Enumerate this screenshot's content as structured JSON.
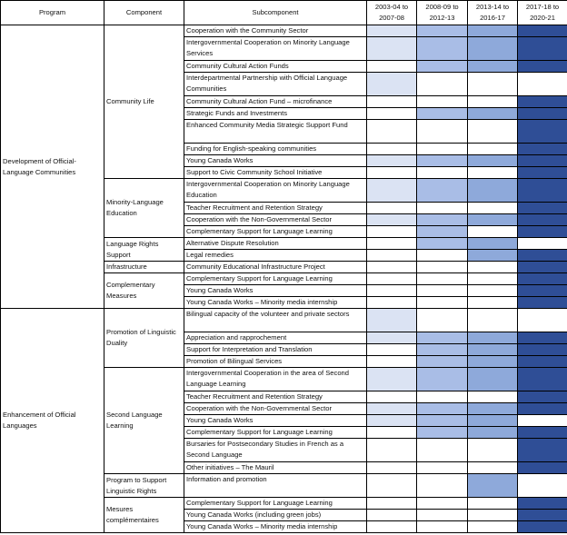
{
  "headers": {
    "program": "Program",
    "component": "Component",
    "subcomponent": "Subcomponent",
    "p1": "2003-04 to 2007-08",
    "p2": "2008-09 to 2012-13",
    "p3": "2013-14 to 2016-17",
    "p4": "2017-18 to 2020-21"
  },
  "shade_colors": {
    "1": "#dbe3f3",
    "2": "#a9bde6",
    "3": "#8ea9da",
    "4": "#2f4e96"
  },
  "programs": [
    {
      "name": "Development of Official-Language Communities",
      "components": [
        {
          "name": "Community Life",
          "rows": [
            {
              "sub": "Cooperation with the Community Sector",
              "shades": [
                1,
                2,
                3,
                4
              ]
            },
            {
              "sub": "Intergovernmental Cooperation on Minority Language Services",
              "shades": [
                1,
                2,
                3,
                4
              ]
            },
            {
              "sub": "Community Cultural Action Funds",
              "shades": [
                0,
                2,
                3,
                4
              ]
            },
            {
              "sub": "Interdepartmental Partnership with Official Language Communities",
              "shades": [
                1,
                0,
                0,
                0
              ]
            },
            {
              "sub": "Community Cultural Action Fund – microfinance",
              "shades": [
                0,
                0,
                0,
                4
              ]
            },
            {
              "sub": "Strategic Funds and Investments",
              "shades": [
                0,
                2,
                3,
                4
              ]
            },
            {
              "sub": "Enhanced Community Media Strategic Support Fund",
              "shades": [
                0,
                0,
                0,
                4
              ]
            },
            {
              "sub": "Funding for English-speaking communities",
              "shades": [
                0,
                0,
                0,
                4
              ]
            },
            {
              "sub": "Young Canada Works",
              "shades": [
                1,
                2,
                3,
                4
              ]
            },
            {
              "sub": "Support to Civic Community School Initiative",
              "shades": [
                0,
                0,
                0,
                4
              ]
            }
          ]
        },
        {
          "name": "Minority-Language Education",
          "rows": [
            {
              "sub": "Intergovernmental Cooperation on Minority Language Education",
              "shades": [
                1,
                2,
                3,
                4
              ]
            },
            {
              "sub": "Teacher Recruitment and Retention Strategy",
              "shades": [
                0,
                0,
                0,
                4
              ]
            },
            {
              "sub": "Cooperation with the Non-Governmental Sector",
              "shades": [
                1,
                2,
                3,
                4
              ]
            },
            {
              "sub": "Complementary Support for Language Learning",
              "shades": [
                0,
                2,
                0,
                4
              ]
            }
          ]
        },
        {
          "name": "Language Rights Support",
          "rows": [
            {
              "sub": "Alternative Dispute Resolution",
              "shades": [
                0,
                2,
                3,
                0
              ]
            },
            {
              "sub": "Legal remedies",
              "shades": [
                0,
                0,
                3,
                4
              ]
            }
          ]
        },
        {
          "name": "Infrastructure",
          "rows": [
            {
              "sub": "Community Educational Infrastructure Project",
              "shades": [
                0,
                0,
                0,
                4
              ]
            }
          ]
        },
        {
          "name": "Complementary Measures",
          "rows": [
            {
              "sub": "Complementary Support for Language Learning",
              "shades": [
                0,
                0,
                0,
                4
              ]
            },
            {
              "sub": "Young Canada Works",
              "shades": [
                0,
                0,
                0,
                4
              ]
            },
            {
              "sub": "Young Canada Works – Minority media internship",
              "shades": [
                0,
                0,
                0,
                4
              ]
            }
          ]
        }
      ]
    },
    {
      "name": "Enhancement of Official Languages",
      "components": [
        {
          "name": "Promotion of Linguistic Duality",
          "rows": [
            {
              "sub": "Bilingual capacity of the volunteer and private sectors",
              "shades": [
                1,
                0,
                0,
                0
              ]
            },
            {
              "sub": "Appreciation and rapprochement",
              "shades": [
                1,
                2,
                3,
                4
              ]
            },
            {
              "sub": "Support for Interpretation and Translation",
              "shades": [
                0,
                2,
                3,
                4
              ]
            },
            {
              "sub": "Promotion of Bilingual Services",
              "shades": [
                0,
                2,
                3,
                4
              ]
            }
          ]
        },
        {
          "name": "Second Language Learning",
          "rows": [
            {
              "sub": "Intergovernmental Cooperation in the area of Second Language Learning",
              "shades": [
                1,
                2,
                3,
                4
              ]
            },
            {
              "sub": "Teacher Recruitment and Retention Strategy",
              "shades": [
                0,
                0,
                0,
                4
              ]
            },
            {
              "sub": "Cooperation with the Non-Governmental Sector",
              "shades": [
                1,
                2,
                3,
                4
              ]
            },
            {
              "sub": "Young Canada Works",
              "shades": [
                1,
                2,
                3,
                0
              ]
            },
            {
              "sub": "Complementary Support for Language Learning",
              "shades": [
                0,
                2,
                3,
                4
              ]
            },
            {
              "sub": "Bursaries for Postsecondary Studies in French as a Second Language",
              "shades": [
                0,
                0,
                0,
                4
              ]
            },
            {
              "sub": "Other initiatives – The Mauril",
              "shades": [
                0,
                0,
                0,
                4
              ]
            }
          ]
        },
        {
          "name": "Program to Support Linguistic Rights",
          "rows": [
            {
              "sub": "Information and promotion",
              "shades": [
                0,
                0,
                3,
                0
              ]
            }
          ]
        },
        {
          "name": "Mesures complémentaires",
          "rows": [
            {
              "sub": "Complementary Support for Language Learning",
              "shades": [
                0,
                0,
                0,
                4
              ]
            },
            {
              "sub": "Young Canada Works (including green jobs)",
              "shades": [
                0,
                0,
                0,
                4
              ]
            },
            {
              "sub": "Young Canada Works – Minority media internship",
              "shades": [
                0,
                0,
                0,
                4
              ]
            }
          ]
        }
      ]
    }
  ]
}
